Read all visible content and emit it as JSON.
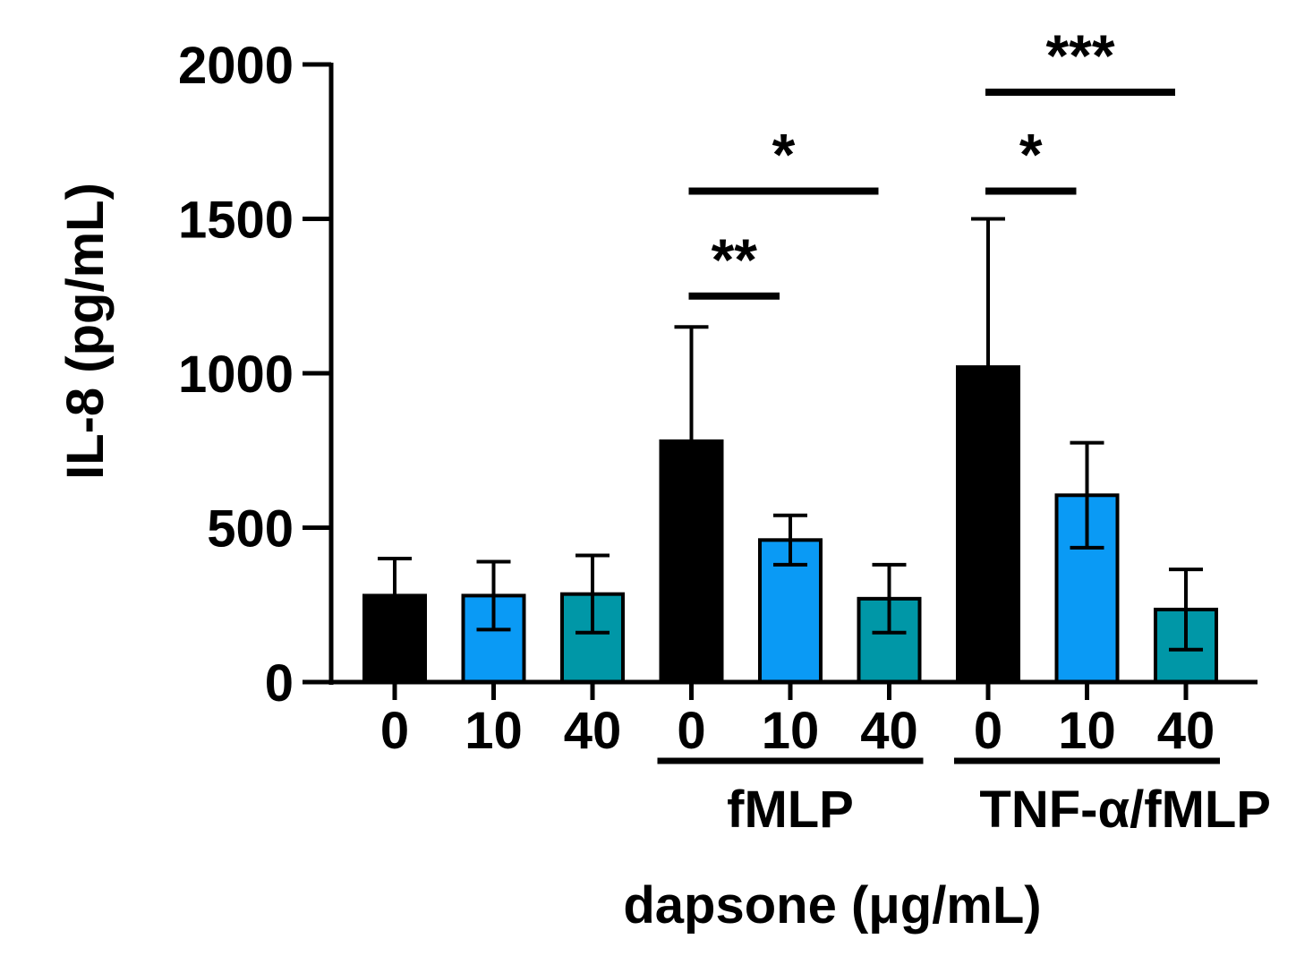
{
  "chart_data": {
    "type": "bar",
    "title": "",
    "ylabel": "IL-8 (pg/mL)",
    "xlabel": "dapsone (μg/mL)",
    "ylim": [
      0,
      2000
    ],
    "yticks": [
      0,
      500,
      1000,
      1500,
      2000
    ],
    "ytick_labels": [
      "0",
      "500",
      "1000",
      "1500",
      "2000"
    ],
    "categories": [
      "0",
      "10",
      "40",
      "0",
      "10",
      "40",
      "0",
      "10",
      "40"
    ],
    "values": [
      280,
      280,
      285,
      780,
      460,
      270,
      1020,
      605,
      235
    ],
    "errors": [
      120,
      110,
      125,
      370,
      80,
      110,
      480,
      170,
      130
    ],
    "colors": [
      "#000000",
      "#0A9AF5",
      "#0097A7",
      "#000000",
      "#0A9AF5",
      "#0097A7",
      "#000000",
      "#0A9AF5",
      "#0097A7"
    ],
    "groups": [
      {
        "label": "fMLP",
        "start": 3,
        "end": 5
      },
      {
        "label": "TNF-α/fMLP",
        "start": 6,
        "end": 8
      }
    ],
    "significance": [
      {
        "from": 3,
        "to": 4,
        "value": 1250,
        "label": "**"
      },
      {
        "from": 3,
        "to": 5,
        "value": 1590,
        "label": "*"
      },
      {
        "from": 6,
        "to": 7,
        "value": 1590,
        "label": "*"
      },
      {
        "from": 6,
        "to": 8,
        "value": 1910,
        "label": "***"
      }
    ]
  }
}
